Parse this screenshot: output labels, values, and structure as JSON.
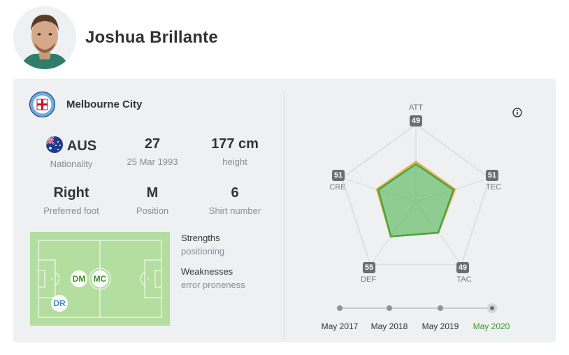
{
  "player": {
    "name": "Joshua Brillante"
  },
  "club": {
    "name": "Melbourne City"
  },
  "stats": {
    "nationality": {
      "value": "AUS",
      "label": "Nationality"
    },
    "age": {
      "value": "27",
      "label": "25 Mar 1993"
    },
    "height": {
      "value": "177 cm",
      "label": "height"
    },
    "foot": {
      "value": "Right",
      "label": "Preferred foot"
    },
    "position": {
      "value": "M",
      "label": "Position"
    },
    "shirt": {
      "value": "6",
      "label": "Shirt number"
    }
  },
  "pitch": {
    "positions": [
      {
        "code": "DM",
        "kind": "main"
      },
      {
        "code": "MC",
        "kind": "main"
      },
      {
        "code": "DR",
        "kind": "alt"
      }
    ]
  },
  "strengths": {
    "heading": "Strengths",
    "value": "positioning"
  },
  "weaknesses": {
    "heading": "Weaknesses",
    "value": "error proneness"
  },
  "radar": {
    "attributes": [
      {
        "key": "ATT",
        "value": "49"
      },
      {
        "key": "TEC",
        "value": "51"
      },
      {
        "key": "TAC",
        "value": "49"
      },
      {
        "key": "DEF",
        "value": "55"
      },
      {
        "key": "CRE",
        "value": "51"
      }
    ],
    "colors": {
      "current": "#5cb85c",
      "compare": "#f0ad4e"
    }
  },
  "timeline": {
    "items": [
      "May 2017",
      "May 2018",
      "May 2019",
      "May 2020"
    ],
    "active": "May 2020"
  },
  "colors": {
    "panel": "#eef0f2",
    "accent_green": "#3c9a2a",
    "pitch": "#b4dea0"
  }
}
